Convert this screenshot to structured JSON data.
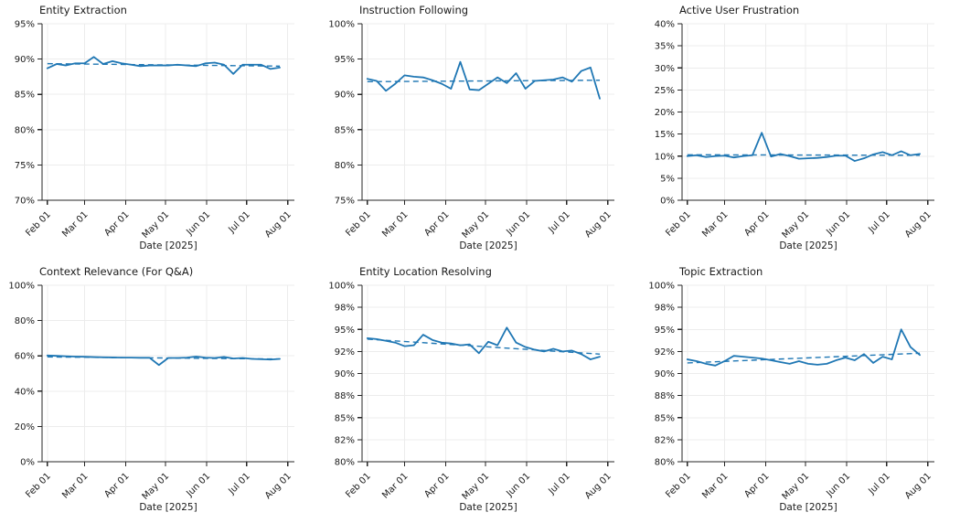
{
  "style": {
    "line_color": "#1f77b4",
    "trend_color": "#1f77b4",
    "grid_color": "#ececec",
    "axis_color": "#262626",
    "text_color": "#1a1a1a",
    "background": "#ffffff"
  },
  "chart_common": {
    "unit": "%",
    "xlim_days": [
      -4,
      186
    ],
    "month_tick_days": [
      0,
      28,
      59,
      89,
      120,
      150,
      181
    ],
    "month_tick_labels": [
      "Feb 01",
      "Mar 01",
      "Apr 01",
      "May 01",
      "Jun 01",
      "Jul 01",
      "Aug 01"
    ],
    "point_dates": [
      "Feb 01",
      "Feb 08",
      "Feb 15",
      "Feb 22",
      "Mar 01",
      "Mar 08",
      "Mar 15",
      "Mar 22",
      "Mar 29",
      "Apr 05",
      "Apr 12",
      "Apr 19",
      "Apr 26",
      "May 03",
      "May 10",
      "May 17",
      "May 24",
      "May 31",
      "Jun 07",
      "Jun 14",
      "Jun 21",
      "Jun 28",
      "Jul 05",
      "Jul 12",
      "Jul 19",
      "Jul 26"
    ],
    "x_days": [
      0,
      7,
      14,
      21,
      28,
      35,
      42,
      49,
      56,
      63,
      70,
      77,
      84,
      91,
      98,
      105,
      112,
      119,
      126,
      133,
      140,
      147,
      154,
      161,
      168,
      175
    ]
  },
  "chart_data": [
    {
      "type": "line",
      "title": "Entity Extraction",
      "xlabel": "Date [2025]",
      "ylabel": "",
      "ylim": [
        70,
        95
      ],
      "grid": true,
      "y_tick_values": [
        70,
        75,
        80,
        85,
        90,
        95
      ],
      "y_tick_labels": [
        "70%",
        "75%",
        "80%",
        "85%",
        "90%",
        "95%"
      ],
      "series": [
        {
          "name": "score",
          "values": [
            88.7,
            89.3,
            89.1,
            89.4,
            89.4,
            90.3,
            89.3,
            89.7,
            89.4,
            89.2,
            89.0,
            89.1,
            89.1,
            89.1,
            89.2,
            89.1,
            89.0,
            89.4,
            89.5,
            89.2,
            87.9,
            89.2,
            89.2,
            89.2,
            88.6,
            88.8
          ]
        },
        {
          "name": "trend",
          "style": "dashed",
          "values": [
            89.35,
            89.0
          ]
        }
      ]
    },
    {
      "type": "line",
      "title": "Instruction Following",
      "xlabel": "Date [2025]",
      "ylabel": "",
      "ylim": [
        75,
        100
      ],
      "grid": true,
      "y_tick_values": [
        75,
        80,
        85,
        90,
        95,
        100
      ],
      "y_tick_labels": [
        "75%",
        "80%",
        "85%",
        "90%",
        "95%",
        "100%"
      ],
      "series": [
        {
          "name": "score",
          "values": [
            92.2,
            91.9,
            90.5,
            91.5,
            92.7,
            92.5,
            92.4,
            92.0,
            91.5,
            90.8,
            94.6,
            90.7,
            90.6,
            91.5,
            92.4,
            91.6,
            93.0,
            90.8,
            91.9,
            92.0,
            92.1,
            92.4,
            91.8,
            93.3,
            93.8,
            89.4
          ]
        },
        {
          "name": "trend",
          "style": "dashed",
          "values": [
            91.8,
            92.0
          ]
        }
      ]
    },
    {
      "type": "line",
      "title": "Active User Frustration",
      "xlabel": "Date [2025]",
      "ylabel": "",
      "ylim": [
        0,
        40
      ],
      "grid": true,
      "y_tick_values": [
        0,
        5,
        10,
        15,
        20,
        25,
        30,
        35,
        40
      ],
      "y_tick_labels": [
        "0%",
        "5%",
        "10%",
        "15%",
        "20%",
        "25%",
        "30%",
        "35%",
        "40%"
      ],
      "series": [
        {
          "name": "score",
          "values": [
            10.0,
            10.2,
            9.8,
            10.0,
            10.1,
            9.7,
            10.0,
            10.2,
            15.3,
            9.9,
            10.5,
            10.0,
            9.4,
            9.5,
            9.6,
            9.8,
            10.1,
            10.1,
            8.9,
            9.5,
            10.4,
            10.9,
            10.2,
            11.1,
            10.2,
            10.5
          ]
        },
        {
          "name": "trend",
          "style": "dashed",
          "values": [
            10.3,
            10.2
          ]
        }
      ]
    },
    {
      "type": "line",
      "title": "Context Relevance (For Q&A)",
      "xlabel": "Date [2025]",
      "ylabel": "",
      "ylim": [
        0,
        100
      ],
      "grid": true,
      "y_tick_values": [
        0,
        20,
        40,
        60,
        80,
        100
      ],
      "y_tick_labels": [
        "0%",
        "20%",
        "40%",
        "60%",
        "80%",
        "100%"
      ],
      "series": [
        {
          "name": "score",
          "values": [
            60.2,
            60.0,
            59.8,
            59.6,
            59.5,
            59.3,
            59.2,
            59.1,
            59.0,
            59.0,
            58.9,
            58.9,
            54.8,
            58.8,
            58.8,
            59.0,
            59.6,
            59.0,
            58.8,
            59.4,
            58.5,
            58.8,
            58.3,
            58.1,
            57.9,
            58.3
          ]
        },
        {
          "name": "trend",
          "style": "dashed",
          "values": [
            59.4,
            58.2
          ]
        }
      ]
    },
    {
      "type": "line",
      "title": "Entity Location Resolving",
      "xlabel": "Date [2025]",
      "ylabel": "",
      "ylim": [
        80,
        100
      ],
      "grid": true,
      "y_tick_values": [
        80,
        82.5,
        85,
        87.5,
        90,
        92.5,
        95,
        97.5,
        100
      ],
      "y_tick_labels": [
        "80%",
        "82%",
        "85%",
        "88%",
        "90%",
        "92%",
        "95%",
        "98%",
        "100%"
      ],
      "series": [
        {
          "name": "score",
          "values": [
            94.0,
            93.9,
            93.7,
            93.5,
            93.1,
            93.2,
            94.4,
            93.8,
            93.5,
            93.4,
            93.2,
            93.3,
            92.3,
            93.6,
            93.2,
            95.2,
            93.5,
            93.0,
            92.7,
            92.5,
            92.8,
            92.5,
            92.6,
            92.2,
            91.6,
            91.9
          ]
        },
        {
          "name": "trend",
          "style": "dashed",
          "values": [
            93.9,
            92.2
          ]
        }
      ]
    },
    {
      "type": "line",
      "title": "Topic Extraction",
      "xlabel": "Date [2025]",
      "ylabel": "",
      "ylim": [
        80,
        100
      ],
      "grid": true,
      "y_tick_values": [
        80,
        82.5,
        85,
        87.5,
        90,
        92.5,
        95,
        97.5,
        100
      ],
      "y_tick_labels": [
        "80%",
        "82%",
        "85%",
        "88%",
        "90%",
        "92%",
        "95%",
        "98%",
        "100%"
      ],
      "series": [
        {
          "name": "score",
          "values": [
            91.6,
            91.4,
            91.1,
            90.9,
            91.4,
            92.0,
            91.9,
            91.8,
            91.7,
            91.5,
            91.3,
            91.1,
            91.4,
            91.1,
            91.0,
            91.1,
            91.5,
            91.8,
            91.5,
            92.2,
            91.2,
            91.9,
            91.6,
            95.0,
            93.0,
            92.1
          ]
        },
        {
          "name": "trend",
          "style": "dashed",
          "values": [
            91.2,
            92.3
          ]
        }
      ]
    }
  ]
}
